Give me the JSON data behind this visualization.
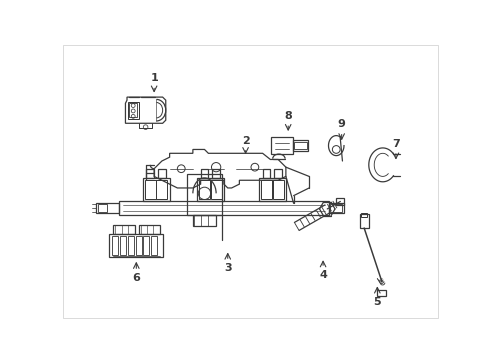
{
  "bg_color": "#ffffff",
  "line_color": "#3a3a3a",
  "label_color": "#000000",
  "figsize": [
    4.89,
    3.6
  ],
  "dpi": 100,
  "border_color": "#cccccc"
}
